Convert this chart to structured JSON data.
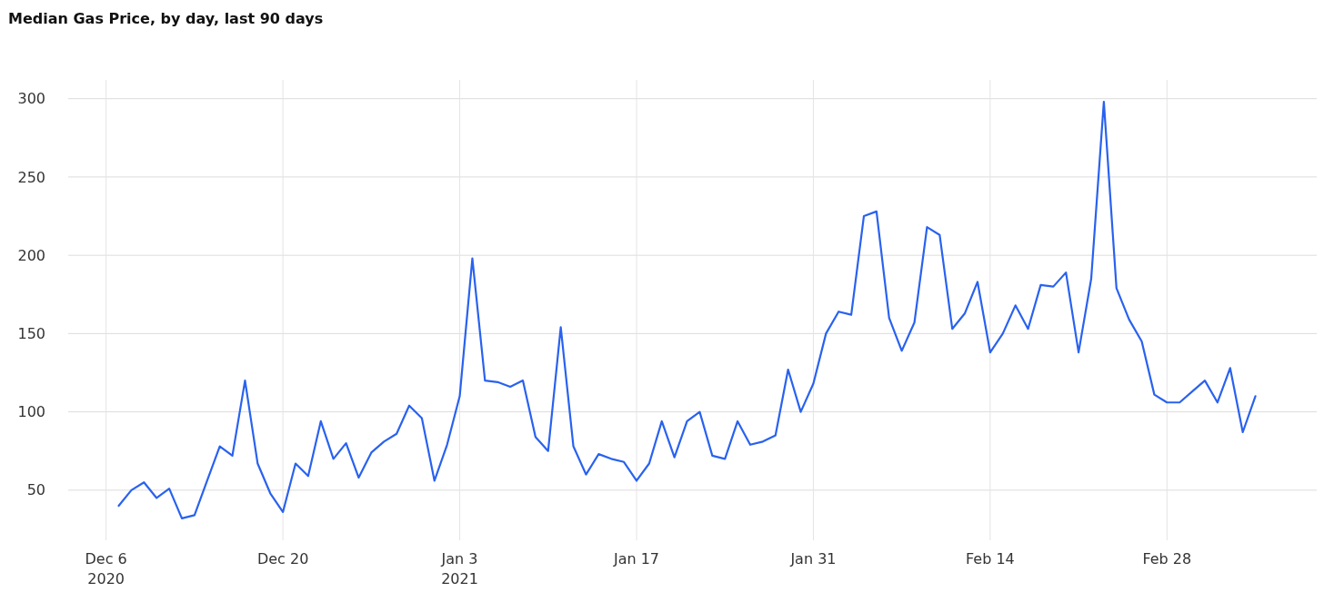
{
  "chart_data": {
    "type": "line",
    "title": "Median Gas Price, by day, last 90 days",
    "x": [
      "2020-12-07",
      "2020-12-08",
      "2020-12-09",
      "2020-12-10",
      "2020-12-11",
      "2020-12-12",
      "2020-12-13",
      "2020-12-14",
      "2020-12-15",
      "2020-12-16",
      "2020-12-17",
      "2020-12-18",
      "2020-12-19",
      "2020-12-20",
      "2020-12-21",
      "2020-12-22",
      "2020-12-23",
      "2020-12-24",
      "2020-12-25",
      "2020-12-26",
      "2020-12-27",
      "2020-12-28",
      "2020-12-29",
      "2020-12-30",
      "2020-12-31",
      "2021-01-01",
      "2021-01-02",
      "2021-01-03",
      "2021-01-04",
      "2021-01-05",
      "2021-01-06",
      "2021-01-07",
      "2021-01-08",
      "2021-01-09",
      "2021-01-10",
      "2021-01-11",
      "2021-01-12",
      "2021-01-13",
      "2021-01-14",
      "2021-01-15",
      "2021-01-16",
      "2021-01-17",
      "2021-01-18",
      "2021-01-19",
      "2021-01-20",
      "2021-01-21",
      "2021-01-22",
      "2021-01-23",
      "2021-01-24",
      "2021-01-25",
      "2021-01-26",
      "2021-01-27",
      "2021-01-28",
      "2021-01-29",
      "2021-01-30",
      "2021-01-31",
      "2021-02-01",
      "2021-02-02",
      "2021-02-03",
      "2021-02-04",
      "2021-02-05",
      "2021-02-06",
      "2021-02-07",
      "2021-02-08",
      "2021-02-09",
      "2021-02-10",
      "2021-02-11",
      "2021-02-12",
      "2021-02-13",
      "2021-02-14",
      "2021-02-15",
      "2021-02-16",
      "2021-02-17",
      "2021-02-18",
      "2021-02-19",
      "2021-02-20",
      "2021-02-21",
      "2021-02-22",
      "2021-02-23",
      "2021-02-24",
      "2021-02-25",
      "2021-02-26",
      "2021-02-27",
      "2021-02-28",
      "2021-03-01",
      "2021-03-02",
      "2021-03-03",
      "2021-03-04",
      "2021-03-05",
      "2021-03-06",
      "2021-03-07"
    ],
    "series": [
      {
        "color": "#2962ef",
        "values": [
          40,
          50,
          55,
          45,
          51,
          32,
          34,
          56,
          78,
          72,
          120,
          67,
          48,
          36,
          67,
          59,
          94,
          70,
          80,
          58,
          74,
          81,
          86,
          104,
          96,
          56,
          79,
          110,
          198,
          120,
          119,
          116,
          120,
          84,
          75,
          154,
          78,
          60,
          73,
          70,
          68,
          56,
          67,
          94,
          71,
          94,
          100,
          72,
          70,
          94,
          79,
          81,
          85,
          127,
          100,
          118,
          150,
          164,
          162,
          225,
          228,
          160,
          139,
          157,
          218,
          213,
          153,
          163,
          183,
          138,
          150,
          168,
          153,
          181,
          180,
          189,
          138,
          185,
          298,
          179,
          159,
          145,
          111,
          106,
          106,
          113,
          120,
          106,
          128,
          87,
          110
        ]
      }
    ],
    "xlim": [
      "2020-12-03",
      "2021-03-12"
    ],
    "xticks": [
      {
        "value": "2020-12-06",
        "label": "Dec 6\n2020"
      },
      {
        "value": "2020-12-20",
        "label": "Dec 20"
      },
      {
        "value": "2021-01-03",
        "label": "Jan 3\n2021"
      },
      {
        "value": "2021-01-17",
        "label": "Jan 17"
      },
      {
        "value": "2021-01-31",
        "label": "Jan 31"
      },
      {
        "value": "2021-02-14",
        "label": "Feb 14"
      },
      {
        "value": "2021-02-28",
        "label": "Feb 28"
      }
    ],
    "ylim": [
      18,
      312
    ],
    "yticks": [
      50,
      100,
      150,
      200,
      250,
      300
    ],
    "grid": true,
    "line_style": "solid",
    "marker": "none"
  }
}
